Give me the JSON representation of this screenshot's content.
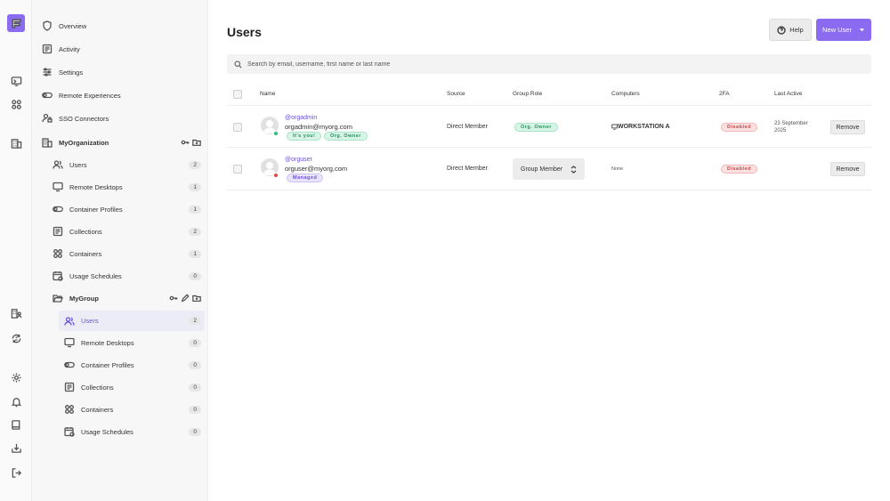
{
  "colors": {
    "accent": "#8b6cf0",
    "accent_text": "#6b4fe0",
    "online": "#2bc07a",
    "offline": "#e04646"
  },
  "rail": {
    "icons": [
      "logo-icon",
      "monitor-icon",
      "apps-grid-icon",
      "building-icon",
      "building-users-icon",
      "sync-icon",
      "gear-icon",
      "bell-icon",
      "book-icon",
      "download-tray-icon",
      "logout-icon"
    ]
  },
  "sidebar": {
    "top_items": [
      {
        "label": "Overview",
        "icon": "shield-icon"
      },
      {
        "label": "Activity",
        "icon": "list-icon"
      },
      {
        "label": "Settings",
        "icon": "sliders-icon"
      },
      {
        "label": "Remote Experiences",
        "icon": "toggle-icon"
      },
      {
        "label": "SSO Connectors",
        "icon": "user-lock-icon"
      }
    ],
    "organization": {
      "label": "MyOrganization",
      "items": [
        {
          "label": "Users",
          "count": "2"
        },
        {
          "label": "Remote Desktops",
          "count": "1"
        },
        {
          "label": "Container Profiles",
          "count": "1"
        },
        {
          "label": "Collections",
          "count": "2"
        },
        {
          "label": "Containers",
          "count": "1"
        },
        {
          "label": "Usage Schedules",
          "count": "0"
        }
      ]
    },
    "group": {
      "label": "MyGroup",
      "items": [
        {
          "label": "Users",
          "count": "2"
        },
        {
          "label": "Remote Desktops",
          "count": "0"
        },
        {
          "label": "Container Profiles",
          "count": "0"
        },
        {
          "label": "Collections",
          "count": "0"
        },
        {
          "label": "Containers",
          "count": "0"
        },
        {
          "label": "Usage Schedules",
          "count": "0"
        }
      ]
    }
  },
  "main": {
    "title": "Users",
    "help_label": "Help",
    "new_user_label": "New User",
    "search_placeholder": "Search by email, username, first name or last name",
    "columns": [
      "Name",
      "Source",
      "Group Role",
      "Computers",
      "2FA",
      "Last Active"
    ],
    "users": [
      {
        "username": "@orgadmin",
        "email": "orgadmin@myorg.com",
        "badges": [
          "It's you!",
          "Org. Owner"
        ],
        "status": "online",
        "source": "Direct Member",
        "group_role": "Org. Owner",
        "computers": "WORKSTATION A",
        "two_fa": "Disabled",
        "last_active": "23 September 2025",
        "action": "Remove"
      },
      {
        "username": "@orguser",
        "email": "orguser@myorg.com",
        "badges": [
          "Managed"
        ],
        "status": "offline",
        "source": "Direct Member",
        "group_role": "Group Member",
        "computers": "None",
        "two_fa": "Disabled",
        "last_active": "",
        "action": "Remove"
      }
    ]
  }
}
